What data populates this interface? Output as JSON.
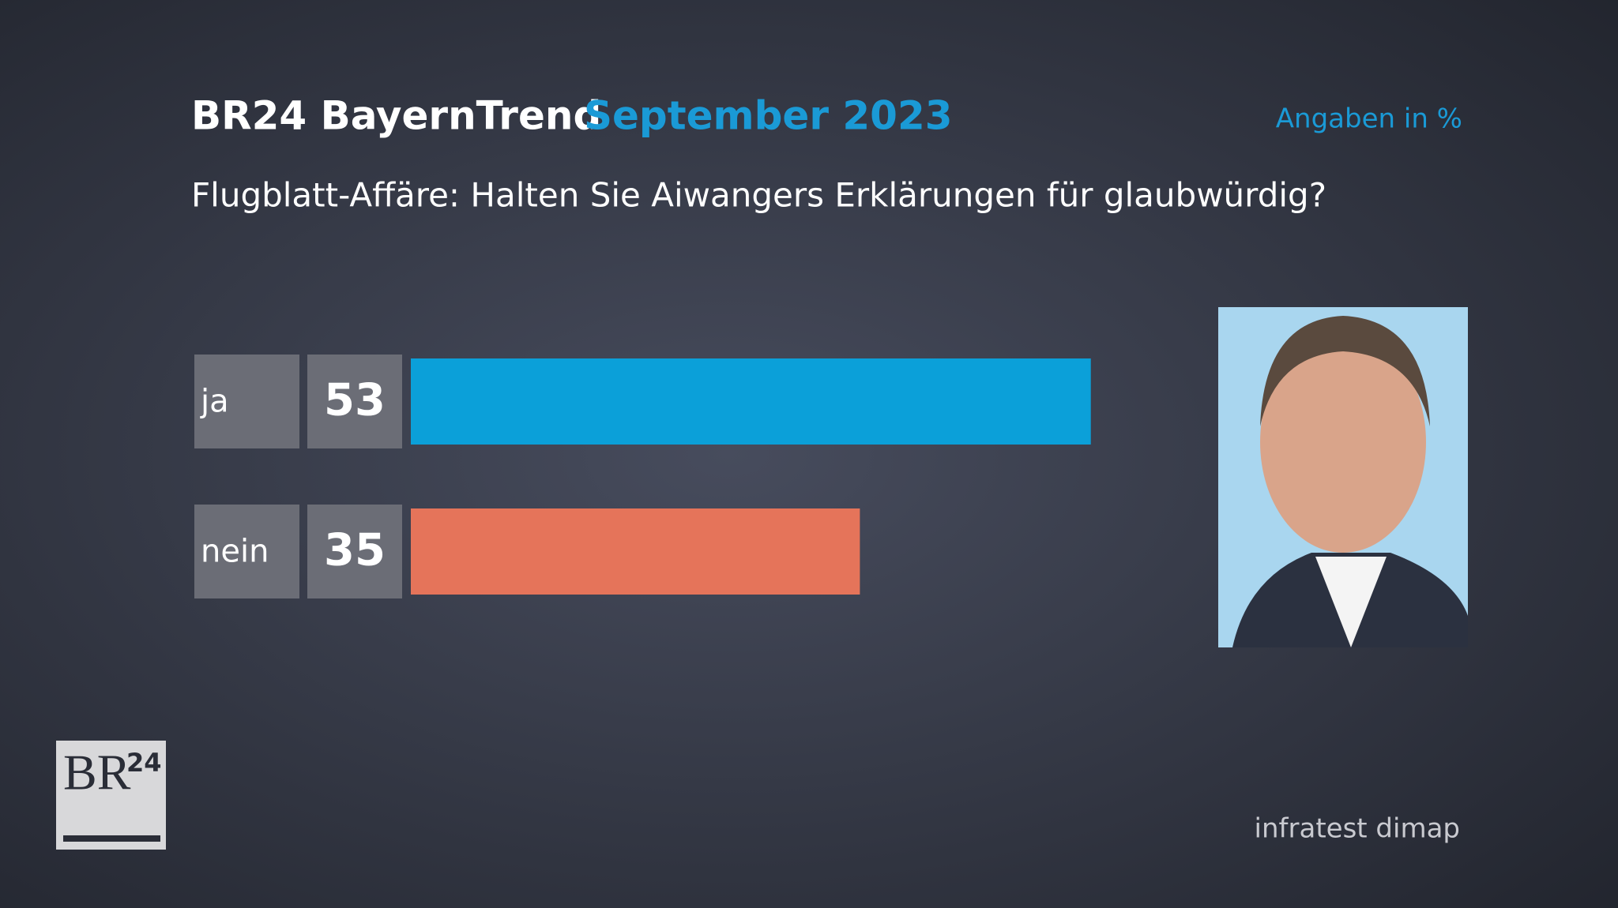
{
  "chart_data": {
    "type": "hbar",
    "title": "BR24 BayernTrend",
    "title_date": "September 2023",
    "unit_note": "Angaben in %",
    "subtitle": "Flugblatt-Affäre: Halten Sie Aiwangers Erklärungen für glaubwürdig?",
    "categories": [
      "ja",
      "nein"
    ],
    "values": [
      53,
      35
    ],
    "colors": [
      "#0ba0d9",
      "#e5745a"
    ],
    "source": "infratest dimap"
  },
  "logo": {
    "text": "BR",
    "superscript": "24"
  }
}
